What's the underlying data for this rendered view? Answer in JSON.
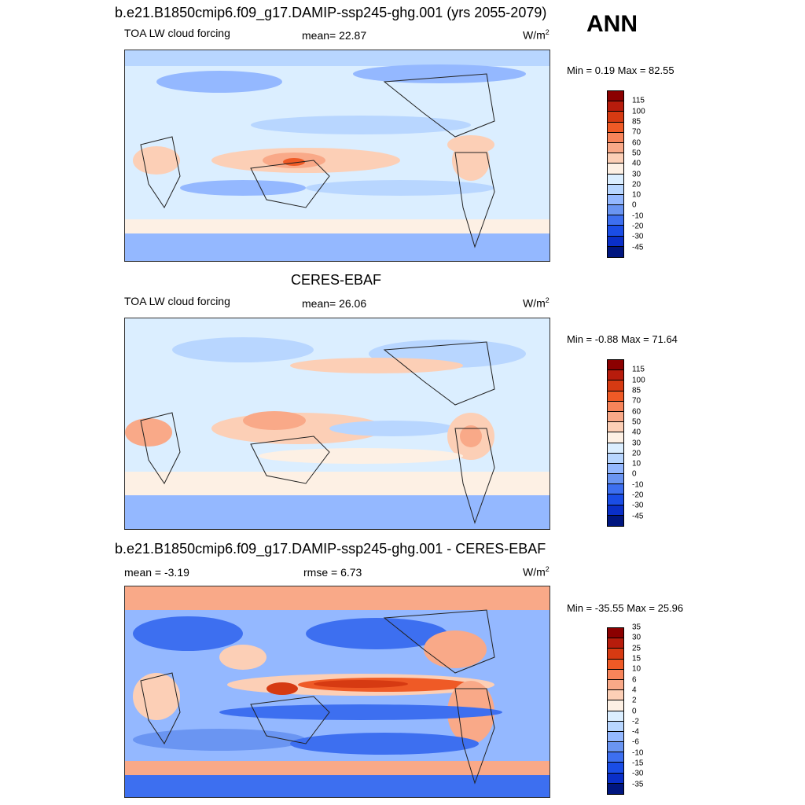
{
  "season": "ANN",
  "panels": [
    {
      "title": "b.e21.B1850cmip6.f09_g17.DAMIP-ssp245-ghg.001 (yrs 2055-2079)",
      "left_label": "TOA LW cloud forcing",
      "center_label": "mean=  22.87",
      "units": "W/m",
      "units_sup": "2",
      "minmax": "Min =   0.19 Max =  82.55",
      "colorbar": {
        "colors": [
          "#8b0000",
          "#b71c0c",
          "#d63a12",
          "#ef5a26",
          "#f7845a",
          "#f9a988",
          "#fccfb6",
          "#fdf0e4",
          "#dbeeff",
          "#b8d6ff",
          "#94b8ff",
          "#6a95f2",
          "#3d6ff0",
          "#1a4de6",
          "#0a2fc8",
          "#00167f"
        ],
        "labels": [
          "115",
          "100",
          "85",
          "70",
          "60",
          "50",
          "40",
          "30",
          "20",
          "10",
          "0",
          "-10",
          "-20",
          "-30",
          "-45"
        ]
      }
    },
    {
      "title": "CERES-EBAF",
      "left_label": "TOA LW cloud forcing",
      "center_label": "mean=  26.06",
      "units": "W/m",
      "units_sup": "2",
      "minmax": "Min =  -0.88 Max =  71.64",
      "colorbar": {
        "colors": [
          "#8b0000",
          "#b71c0c",
          "#d63a12",
          "#ef5a26",
          "#f7845a",
          "#f9a988",
          "#fccfb6",
          "#fdf0e4",
          "#dbeeff",
          "#b8d6ff",
          "#94b8ff",
          "#6a95f2",
          "#3d6ff0",
          "#1a4de6",
          "#0a2fc8",
          "#00167f"
        ],
        "labels": [
          "115",
          "100",
          "85",
          "70",
          "60",
          "50",
          "40",
          "30",
          "20",
          "10",
          "0",
          "-10",
          "-20",
          "-30",
          "-45"
        ]
      }
    },
    {
      "title": "b.e21.B1850cmip6.f09_g17.DAMIP-ssp245-ghg.001 - CERES-EBAF",
      "left_label": "mean =  -3.19",
      "center_label": "rmse =   6.73",
      "units": "W/m",
      "units_sup": "2",
      "minmax": "Min = -35.55 Max =  25.96",
      "colorbar": {
        "colors": [
          "#8b0000",
          "#b71c0c",
          "#d63a12",
          "#ef5a26",
          "#f7845a",
          "#f9a988",
          "#fccfb6",
          "#fdf0e4",
          "#dbeeff",
          "#b8d6ff",
          "#94b8ff",
          "#6a95f2",
          "#3d6ff0",
          "#1a4de6",
          "#0a2fc8",
          "#00167f"
        ],
        "labels": [
          "35",
          "30",
          "25",
          "15",
          "10",
          "6",
          "4",
          "2",
          "0",
          "-2",
          "-4",
          "-6",
          "-10",
          "-15",
          "-30",
          "-35"
        ]
      }
    }
  ]
}
